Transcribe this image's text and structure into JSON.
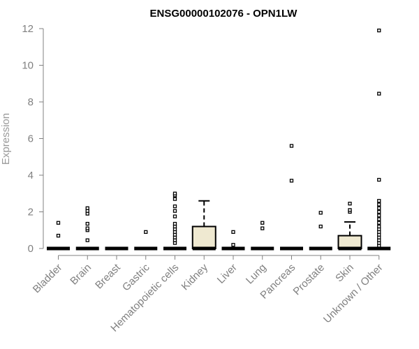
{
  "chart_data": {
    "type": "box",
    "title": "ENSG00000102076 - OPN1LW",
    "xlabel": "",
    "ylabel": "Expression",
    "ylim": [
      0,
      12
    ],
    "yticks": [
      0,
      2,
      4,
      6,
      8,
      10,
      12
    ],
    "box_fill": "#efe9d1",
    "categories": [
      "Bladder",
      "Brain",
      "Breast",
      "Gastric",
      "Hematopoietic cells",
      "Kidney",
      "Liver",
      "Lung",
      "Pancreas",
      "Prostate",
      "Skin",
      "Unknown / Other"
    ],
    "boxes": [
      {
        "category": "Bladder",
        "q1": 0,
        "median": 0,
        "q3": 0,
        "whisker_low": 0,
        "whisker_high": 0,
        "outliers": [
          0.7,
          1.4
        ]
      },
      {
        "category": "Brain",
        "q1": 0,
        "median": 0,
        "q3": 0,
        "whisker_low": 0,
        "whisker_high": 0,
        "outliers": [
          0.45,
          1.0,
          1.1,
          1.35,
          1.9,
          2.05,
          2.2
        ]
      },
      {
        "category": "Breast",
        "q1": 0,
        "median": 0,
        "q3": 0,
        "whisker_low": 0,
        "whisker_high": 0,
        "outliers": []
      },
      {
        "category": "Gastric",
        "q1": 0,
        "median": 0,
        "q3": 0,
        "whisker_low": 0,
        "whisker_high": 0,
        "outliers": [
          0.9
        ]
      },
      {
        "category": "Hematopoietic cells",
        "q1": 0,
        "median": 0,
        "q3": 0,
        "whisker_low": 0,
        "whisker_high": 0,
        "outliers": [
          0.3,
          0.45,
          0.6,
          0.75,
          0.9,
          1.05,
          1.2,
          1.35,
          1.75,
          2.05,
          2.3,
          2.7,
          2.9,
          3.0
        ]
      },
      {
        "category": "Kidney",
        "q1": 0,
        "median": 0,
        "q3": 1.2,
        "whisker_low": 0,
        "whisker_high": 2.6,
        "outliers": []
      },
      {
        "category": "Liver",
        "q1": 0,
        "median": 0,
        "q3": 0,
        "whisker_low": 0,
        "whisker_high": 0,
        "outliers": [
          0.2,
          0.9
        ]
      },
      {
        "category": "Lung",
        "q1": 0,
        "median": 0,
        "q3": 0,
        "whisker_low": 0,
        "whisker_high": 0,
        "outliers": [
          1.1,
          1.4
        ]
      },
      {
        "category": "Pancreas",
        "q1": 0,
        "median": 0,
        "q3": 0,
        "whisker_low": 0,
        "whisker_high": 0,
        "outliers": [
          3.7,
          5.6
        ]
      },
      {
        "category": "Prostate",
        "q1": 0,
        "median": 0,
        "q3": 0,
        "whisker_low": 0,
        "whisker_high": 0,
        "outliers": [
          1.2,
          1.95
        ]
      },
      {
        "category": "Skin",
        "q1": 0,
        "median": 0,
        "q3": 0.7,
        "whisker_low": 0,
        "whisker_high": 1.45,
        "outliers": [
          2.0,
          2.1,
          2.45
        ]
      },
      {
        "category": "Unknown / Other",
        "q1": 0,
        "median": 0,
        "q3": 0,
        "whisker_low": 0,
        "whisker_high": 0,
        "outliers": [
          0.15,
          0.3,
          0.45,
          0.6,
          0.75,
          0.9,
          1.05,
          1.2,
          1.4,
          1.6,
          1.8,
          2.0,
          2.2,
          2.4,
          2.6,
          3.75,
          8.45,
          11.9
        ]
      }
    ]
  }
}
